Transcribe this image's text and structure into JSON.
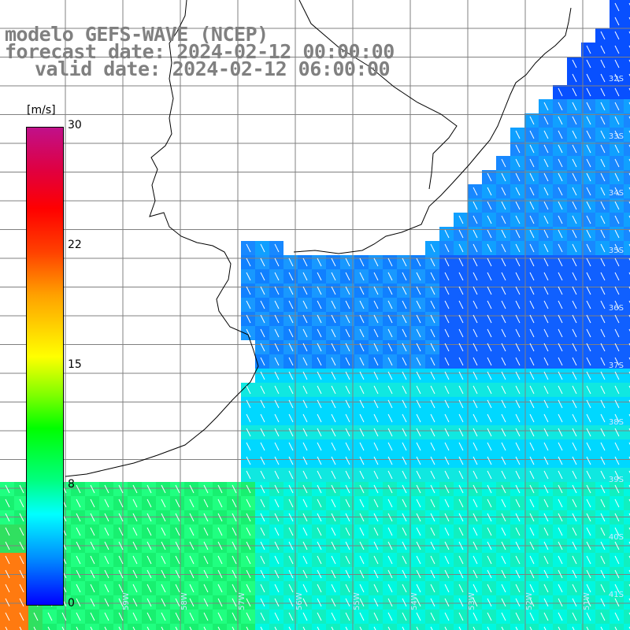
{
  "title": {
    "line1": "modelo GEFS-WAVE (NCEP)",
    "line2": "forecast date: 2024-02-12 00:00:00",
    "line3": "valid date: 2024-02-12 06:00:00"
  },
  "colorbar": {
    "unit": "[m/s]",
    "ticks": [
      "30",
      "22",
      "15",
      "8",
      "0"
    ],
    "colors": [
      "#0000ff",
      "#0090ff",
      "#00ffff",
      "#00ff00",
      "#ffff00",
      "#ff0000",
      "#c0108a"
    ]
  },
  "lat_labels": [
    "32S",
    "33S",
    "34S",
    "35S",
    "36S",
    "37S",
    "38S",
    "39S",
    "40S",
    "41S"
  ],
  "lon_labels": [
    "59W",
    "58W",
    "57W",
    "56W",
    "55W",
    "54W",
    "53W",
    "52W",
    "51W",
    "50W"
  ],
  "colors": {
    "land": "#ffffff",
    "grid": "#808080",
    "coast": "#000000",
    "arrow": "#ffffff"
  }
}
